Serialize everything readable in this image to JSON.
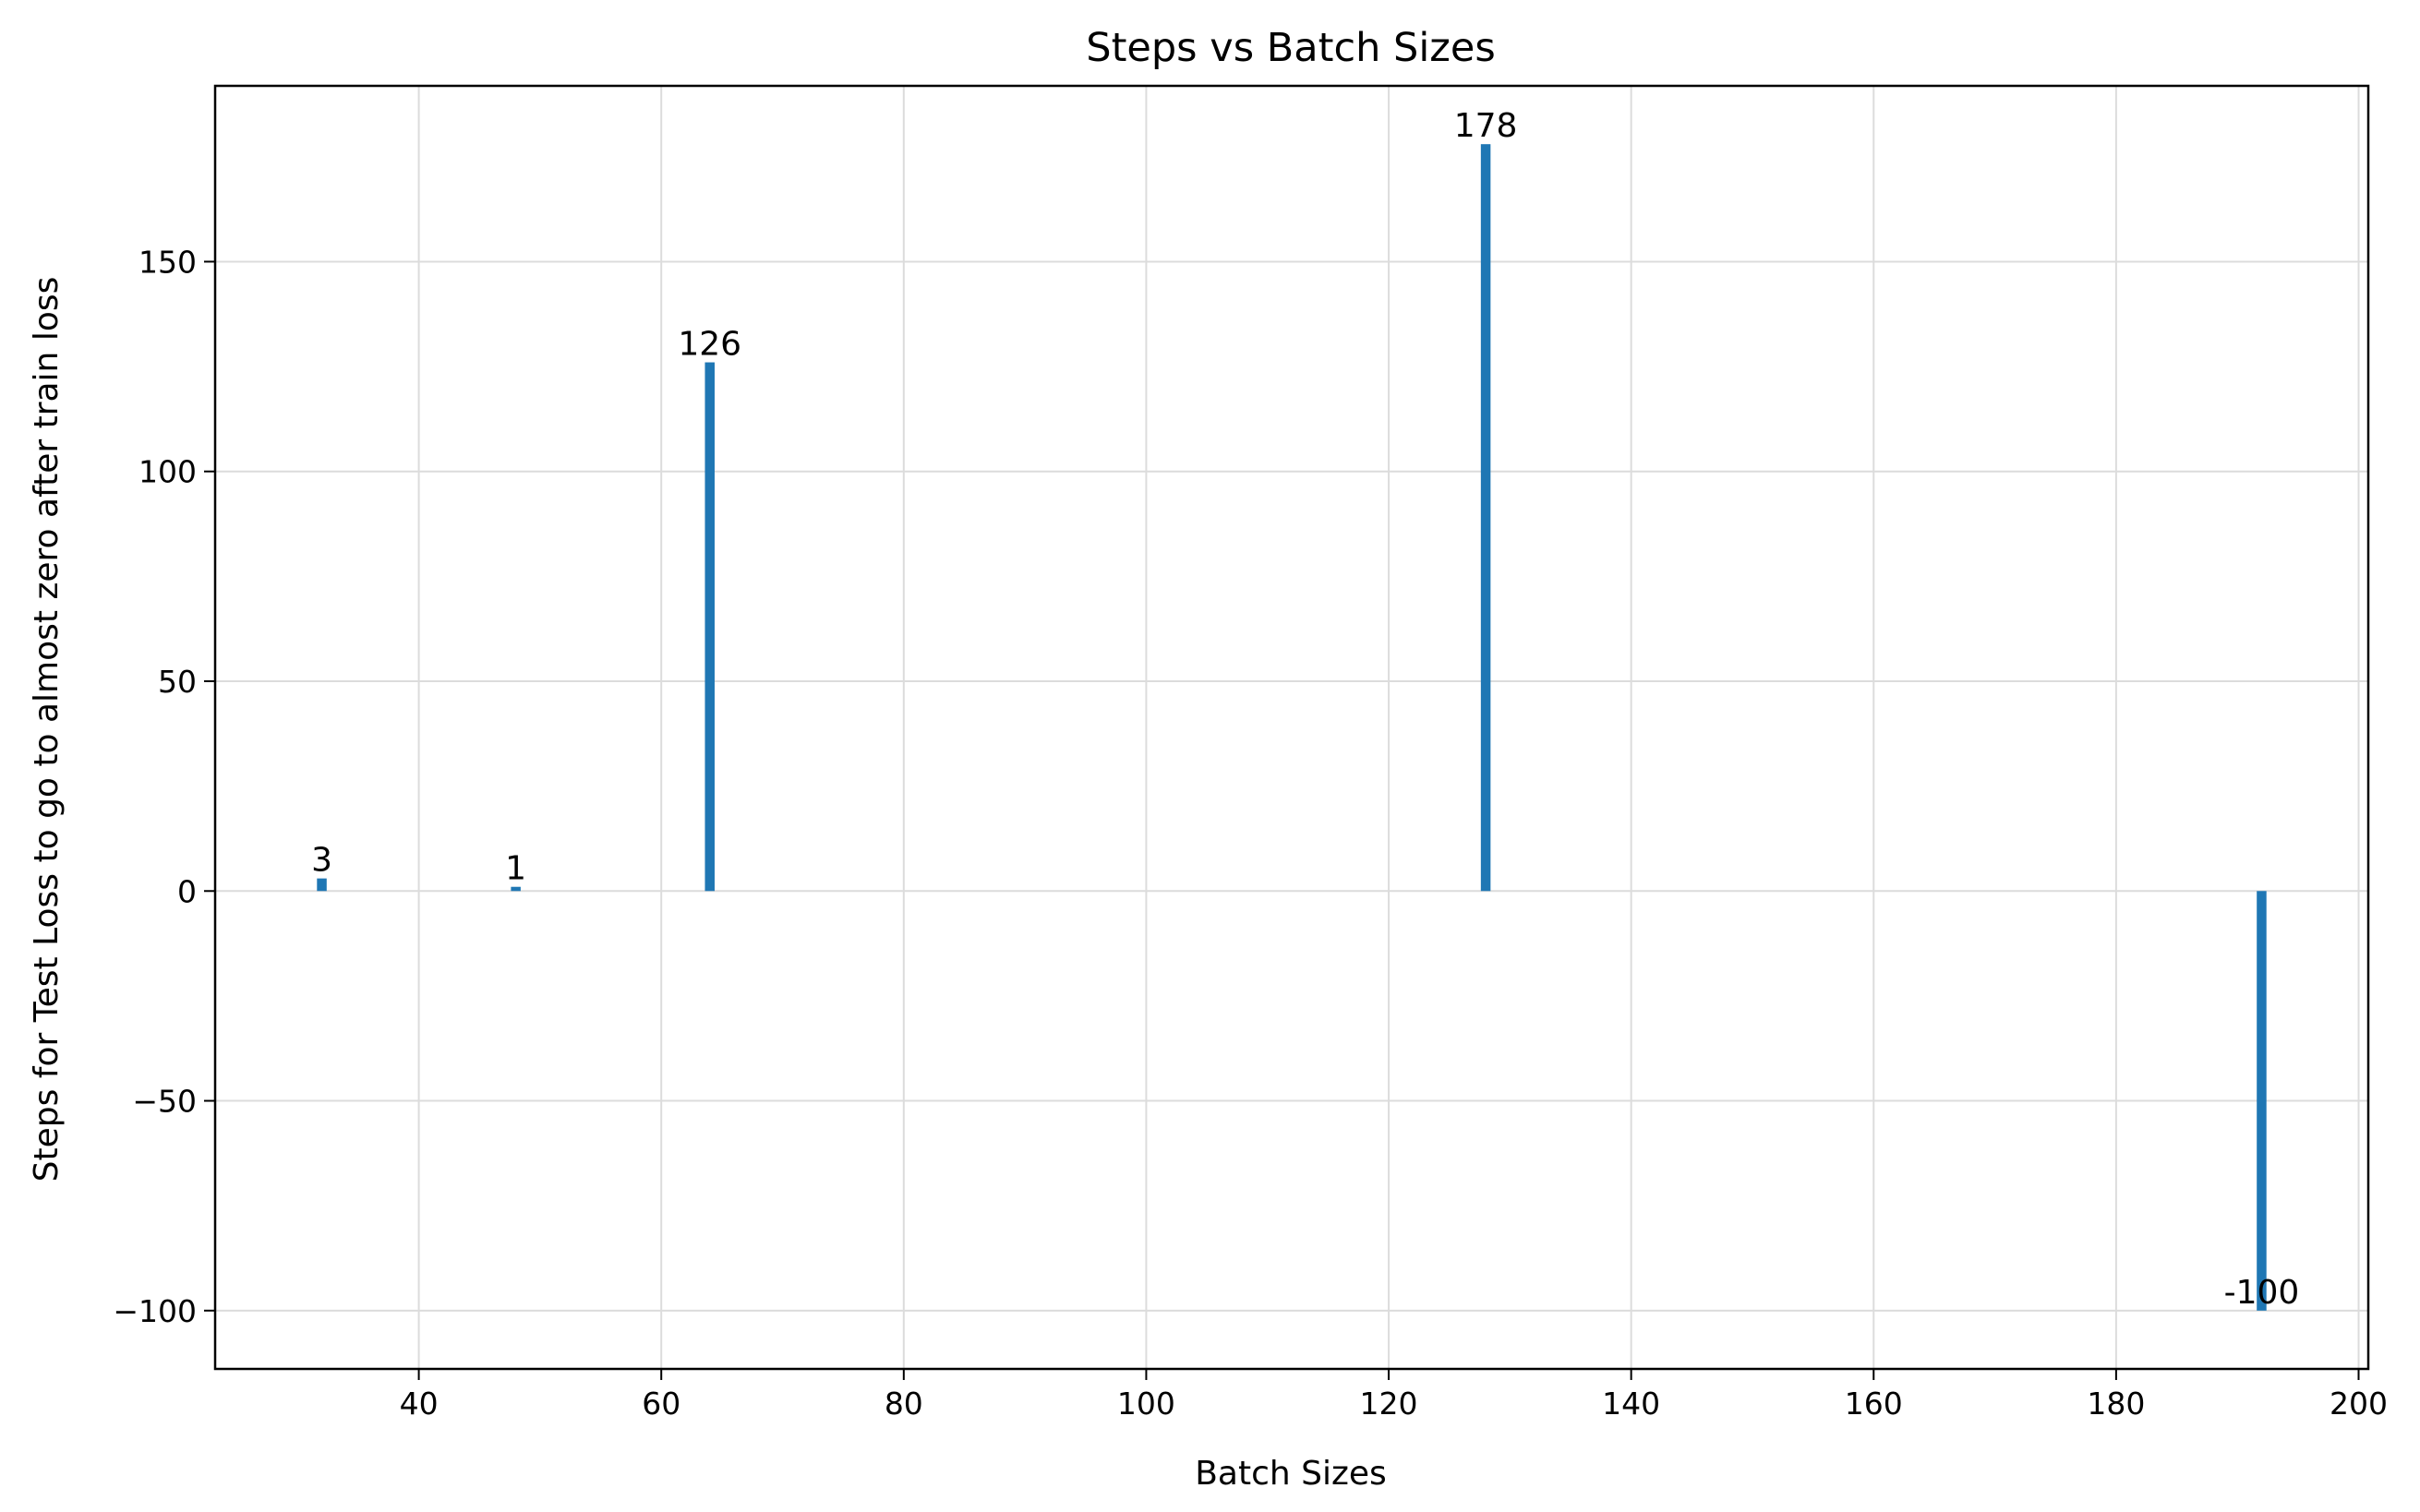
{
  "chart_data": {
    "type": "bar",
    "title": "Steps vs Batch Sizes",
    "xlabel": "Batch Sizes",
    "ylabel": "Steps for Test Loss to go to almost zero after train loss",
    "x": [
      32,
      48,
      64,
      128,
      192
    ],
    "values": [
      3,
      1,
      126,
      178,
      -100
    ],
    "data_labels": [
      "3",
      "1",
      "126",
      "178",
      "-100"
    ],
    "xlim": [
      23.2,
      200.8
    ],
    "ylim": [
      -113.9,
      191.9
    ],
    "x_ticks": [
      40,
      60,
      80,
      100,
      120,
      140,
      160,
      180,
      200
    ],
    "x_tick_labels": [
      "40",
      "60",
      "80",
      "100",
      "120",
      "140",
      "160",
      "180",
      "200"
    ],
    "y_ticks": [
      -100,
      -50,
      0,
      50,
      100,
      150
    ],
    "y_tick_labels": [
      "−100",
      "−50",
      "0",
      "50",
      "100",
      "150"
    ],
    "bar_width": 0.8,
    "grid": true,
    "legend": "none",
    "colors": {
      "bar": "#1f77b4"
    }
  }
}
